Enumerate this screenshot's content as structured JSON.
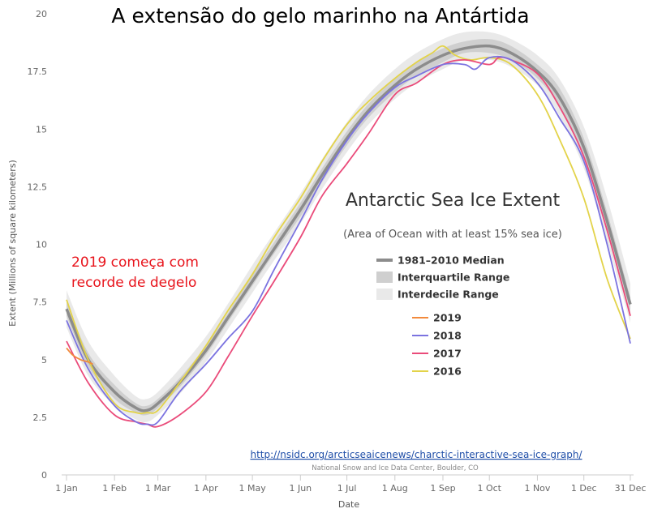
{
  "colors": {
    "median": "#8c8c8c",
    "interquartile": "#cfcfcf",
    "interdecile": "#e9e9e9",
    "s2019": "#f28a3c",
    "s2018": "#7b73e0",
    "s2017": "#ea4b7a",
    "s2016": "#e3d34a",
    "annotation": "#e8141c",
    "link": "#1f4ea8"
  },
  "chart_data": {
    "type": "line",
    "title": "A extensão do gelo marinho na Antártida",
    "inner_title": "Antarctic Sea Ice Extent",
    "inner_subtitle": "(Area of Ocean with at least 15% sea ice)",
    "annotation_lines": [
      "2019 começa com",
      "recorde de degelo"
    ],
    "source_link": "http://nsidc.org/arcticseaicenews/charctic-interactive-sea-ice-graph/",
    "credit": "National Snow and Ice Data Center, Boulder, CO",
    "xlabel": "Date",
    "ylabel": "Extent (Millions of square kilometers)",
    "ylim": [
      0,
      20
    ],
    "y_ticks": [
      "0",
      "2.5",
      "5",
      "7.5",
      "10",
      "12.5",
      "15",
      "17.5",
      "20"
    ],
    "x_ticks": [
      {
        "label": "1 Jan",
        "day": 1
      },
      {
        "label": "1 Feb",
        "day": 32
      },
      {
        "label": "1 Mar",
        "day": 60
      },
      {
        "label": "1 Apr",
        "day": 91
      },
      {
        "label": "1 May",
        "day": 121
      },
      {
        "label": "1 Jun",
        "day": 152
      },
      {
        "label": "1 Jul",
        "day": 182
      },
      {
        "label": "1 Aug",
        "day": 213
      },
      {
        "label": "1 Sep",
        "day": 244
      },
      {
        "label": "1 Oct",
        "day": 274
      },
      {
        "label": "1 Nov",
        "day": 305
      },
      {
        "label": "1 Dec",
        "day": 335
      },
      {
        "label": "31 Dec",
        "day": 365
      }
    ],
    "legend": {
      "ranges": [
        {
          "key": "median",
          "label": "1981–2010 Median"
        },
        {
          "key": "interquartile",
          "label": "Interquartile Range"
        },
        {
          "key": "interdecile",
          "label": "Interdecile Range"
        }
      ],
      "years": [
        {
          "key": "s2019",
          "label": "2019"
        },
        {
          "key": "s2018",
          "label": "2018"
        },
        {
          "key": "s2017",
          "label": "2017"
        },
        {
          "key": "s2016",
          "label": "2016"
        }
      ]
    },
    "days": [
      1,
      15,
      32,
      46,
      53,
      60,
      74,
      91,
      105,
      121,
      135,
      152,
      166,
      182,
      196,
      213,
      227,
      244,
      258,
      274,
      288,
      305,
      319,
      335,
      350,
      365
    ],
    "median": [
      7.2,
      5.0,
      3.6,
      2.9,
      2.8,
      3.1,
      4.0,
      5.4,
      6.8,
      8.4,
      9.8,
      11.5,
      13.0,
      14.6,
      15.8,
      16.9,
      17.6,
      18.2,
      18.5,
      18.6,
      18.3,
      17.5,
      16.4,
      14.2,
      11.0,
      7.4
    ],
    "interquartile": {
      "low": [
        6.9,
        4.7,
        3.3,
        2.7,
        2.6,
        2.9,
        3.8,
        5.2,
        6.6,
        8.2,
        9.6,
        11.2,
        12.7,
        14.3,
        15.5,
        16.6,
        17.3,
        17.9,
        18.3,
        18.3,
        18.0,
        17.2,
        16.0,
        13.8,
        10.6,
        7.1
      ],
      "high": [
        7.5,
        5.3,
        3.9,
        3.1,
        3.0,
        3.3,
        4.2,
        5.6,
        7.0,
        8.7,
        10.1,
        11.8,
        13.3,
        14.9,
        16.1,
        17.2,
        17.9,
        18.5,
        18.8,
        18.9,
        18.6,
        17.8,
        16.8,
        14.6,
        11.4,
        7.7
      ]
    },
    "interdecile": {
      "low": [
        6.4,
        4.3,
        3.0,
        2.4,
        2.3,
        2.6,
        3.5,
        4.9,
        6.3,
        7.9,
        9.3,
        10.9,
        12.4,
        14.0,
        15.2,
        16.3,
        17.0,
        17.6,
        18.0,
        18.0,
        17.7,
        16.9,
        15.6,
        13.3,
        10.1,
        6.6
      ],
      "high": [
        8.0,
        5.8,
        4.3,
        3.4,
        3.3,
        3.6,
        4.6,
        6.0,
        7.4,
        9.1,
        10.5,
        12.2,
        13.7,
        15.3,
        16.5,
        17.6,
        18.3,
        18.9,
        19.2,
        19.2,
        18.9,
        18.2,
        17.2,
        15.1,
        12.0,
        8.3
      ]
    },
    "series": [
      {
        "key": "s2019",
        "x": [
          1,
          5,
          10,
          15,
          18
        ],
        "values": [
          5.5,
          5.2,
          5.0,
          4.9,
          4.8
        ]
      },
      {
        "key": "s2018",
        "x": [
          1,
          15,
          32,
          46,
          53,
          60,
          74,
          91,
          105,
          121,
          135,
          152,
          166,
          182,
          196,
          213,
          227,
          244,
          258,
          265,
          274,
          288,
          305,
          319,
          335,
          350,
          365
        ],
        "values": [
          6.7,
          4.6,
          3.0,
          2.3,
          2.2,
          2.3,
          3.6,
          4.8,
          5.9,
          7.1,
          8.9,
          11.0,
          12.8,
          14.5,
          15.7,
          16.8,
          17.3,
          17.8,
          17.8,
          17.6,
          18.1,
          18.0,
          17.0,
          15.5,
          13.6,
          10.0,
          5.7
        ]
      },
      {
        "key": "s2017",
        "x": [
          1,
          15,
          32,
          46,
          53,
          60,
          74,
          91,
          105,
          121,
          135,
          152,
          166,
          182,
          196,
          213,
          227,
          244,
          258,
          274,
          280,
          288,
          305,
          319,
          335,
          350,
          365
        ],
        "values": [
          5.8,
          4.0,
          2.6,
          2.3,
          2.2,
          2.1,
          2.6,
          3.6,
          5.1,
          6.9,
          8.4,
          10.3,
          12.1,
          13.5,
          14.8,
          16.5,
          17.0,
          17.8,
          18.0,
          17.8,
          18.1,
          18.0,
          17.4,
          16.0,
          13.8,
          10.6,
          6.9
        ]
      },
      {
        "key": "s2016",
        "x": [
          1,
          15,
          32,
          46,
          53,
          60,
          74,
          91,
          105,
          121,
          135,
          152,
          166,
          182,
          196,
          213,
          227,
          237,
          244,
          252,
          262,
          274,
          288,
          305,
          319,
          335,
          350,
          365
        ],
        "values": [
          7.6,
          5.0,
          3.1,
          2.7,
          2.7,
          2.8,
          4.0,
          5.6,
          7.1,
          8.7,
          10.3,
          12.0,
          13.6,
          15.2,
          16.2,
          17.2,
          17.9,
          18.3,
          18.6,
          18.2,
          18.0,
          18.1,
          17.8,
          16.5,
          14.6,
          12.0,
          8.5,
          5.9
        ]
      }
    ]
  }
}
